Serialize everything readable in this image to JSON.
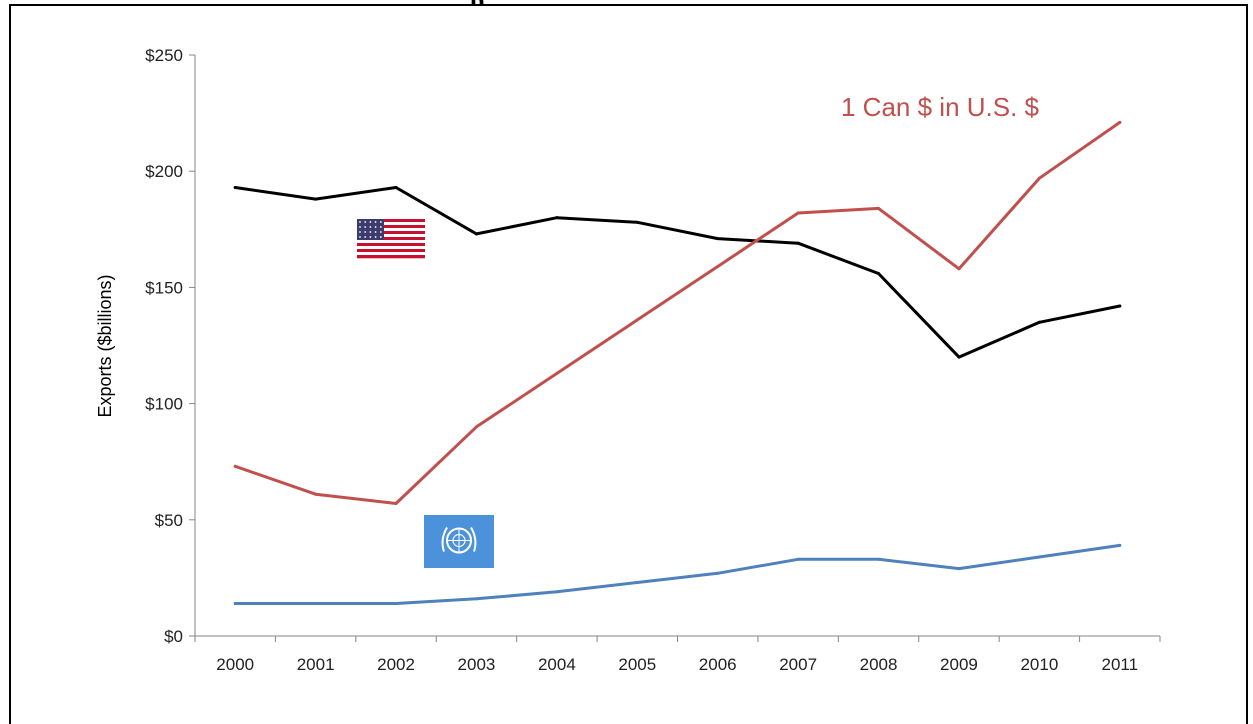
{
  "page": {
    "cut_title_fragment": "p"
  },
  "chart_data": {
    "type": "line",
    "title": "",
    "xlabel": "",
    "ylabel": "Exports ($billions)",
    "ylim": [
      0,
      250
    ],
    "yticks": [
      0,
      50,
      100,
      150,
      200,
      250
    ],
    "ytick_labels": [
      "$0",
      "$50",
      "$100",
      "$150",
      "$200",
      "$250"
    ],
    "categories": [
      "2000",
      "2001",
      "2002",
      "2003",
      "2004",
      "2005",
      "2006",
      "2007",
      "2008",
      "2009",
      "2010",
      "2011"
    ],
    "grid": false,
    "annotation": {
      "text": "1 Can $ in U.S. $",
      "color": "#C0504D"
    },
    "series": [
      {
        "marker": "us-flag",
        "color": "#000000",
        "values": [
          193,
          188,
          193,
          173,
          180,
          178,
          171,
          169,
          156,
          120,
          135,
          142
        ]
      },
      {
        "color": "#C0504D",
        "values": [
          73,
          61,
          57,
          90,
          113,
          136,
          159,
          182,
          184,
          158,
          197,
          221
        ]
      },
      {
        "marker": "un-flag",
        "color": "#4F81BD",
        "values": [
          14,
          14,
          14,
          16,
          19,
          23,
          27,
          33,
          33,
          29,
          34,
          39
        ]
      }
    ]
  }
}
